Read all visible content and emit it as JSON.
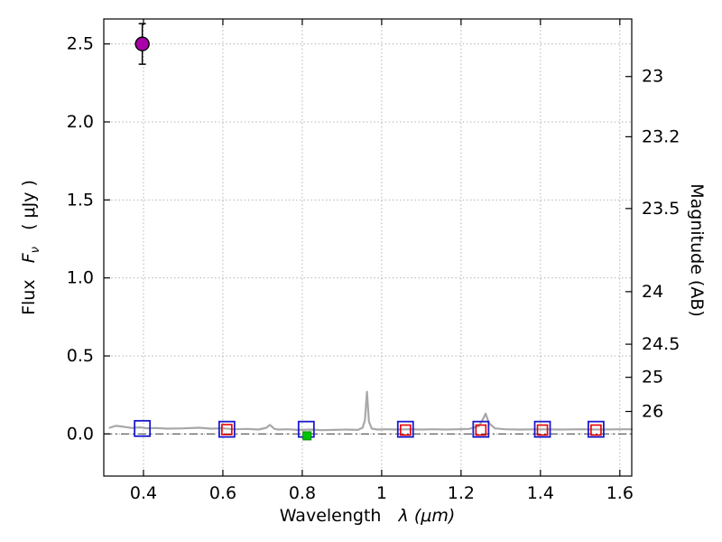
{
  "chart_data": {
    "type": "scatter",
    "title": "",
    "x_axis": {
      "label_parts": {
        "prefix": "Wavelength",
        "symbol": "λ",
        "unit": "(μm)"
      },
      "range": [
        0.3,
        1.63
      ],
      "tick_values": [
        0.4,
        0.6,
        0.8,
        1.0,
        1.2,
        1.4,
        1.6
      ],
      "tick_labels": [
        "0.4",
        "0.6",
        "0.8",
        "1",
        "1.2",
        "1.4",
        "1.6"
      ]
    },
    "y_axis_left": {
      "label_parts": {
        "prefix": "Flux",
        "symbol": "F",
        "sub": "ν",
        "unit": "( μJy )"
      },
      "range": [
        -0.27,
        2.66
      ],
      "tick_values": [
        0.0,
        0.5,
        1.0,
        1.5,
        2.0,
        2.5
      ],
      "tick_labels": [
        "0.0",
        "0.5",
        "1.0",
        "1.5",
        "2.0",
        "2.5"
      ]
    },
    "y_axis_right": {
      "label": "Magnitude (AB)",
      "tick_labels": [
        "23",
        "23.2",
        "23.5",
        "24",
        "24.5",
        "25",
        "26"
      ],
      "tick_flux_values": [
        2.291,
        1.905,
        1.445,
        0.912,
        0.575,
        0.363,
        0.144
      ]
    },
    "grid": {
      "show": true,
      "style": "dotted",
      "color": "#b3b3b3"
    },
    "zero_line": {
      "y": 0.0,
      "style": "dashdot",
      "color": "#404040"
    },
    "series": [
      {
        "name": "model-spectrum-line",
        "type": "line",
        "color": "#a8a8a8",
        "width": 2.2,
        "x": [
          0.315,
          0.33,
          0.35,
          0.37,
          0.39,
          0.41,
          0.43,
          0.46,
          0.5,
          0.54,
          0.57,
          0.6,
          0.63,
          0.66,
          0.69,
          0.71,
          0.718,
          0.724,
          0.73,
          0.74,
          0.76,
          0.79,
          0.82,
          0.85,
          0.88,
          0.91,
          0.94,
          0.952,
          0.958,
          0.963,
          0.968,
          0.975,
          0.99,
          1.01,
          1.04,
          1.07,
          1.1,
          1.13,
          1.16,
          1.19,
          1.22,
          1.245,
          1.255,
          1.262,
          1.27,
          1.285,
          1.31,
          1.35,
          1.4,
          1.45,
          1.5,
          1.55,
          1.6,
          1.63
        ],
        "y": [
          0.04,
          0.052,
          0.046,
          0.038,
          0.042,
          0.036,
          0.038,
          0.034,
          0.036,
          0.04,
          0.034,
          0.036,
          0.03,
          0.032,
          0.028,
          0.04,
          0.058,
          0.046,
          0.032,
          0.028,
          0.03,
          0.026,
          0.028,
          0.024,
          0.026,
          0.028,
          0.026,
          0.04,
          0.09,
          0.27,
          0.08,
          0.034,
          0.028,
          0.03,
          0.028,
          0.03,
          0.028,
          0.03,
          0.028,
          0.03,
          0.032,
          0.05,
          0.095,
          0.13,
          0.07,
          0.036,
          0.03,
          0.028,
          0.03,
          0.028,
          0.03,
          0.028,
          0.03,
          0.03
        ]
      },
      {
        "name": "observed-photometry-squares",
        "type": "scatter",
        "marker": "square-open",
        "color": "#1a1acd",
        "size": 17,
        "stroke_width": 1.8,
        "x": [
          0.397,
          0.61,
          0.81,
          1.06,
          1.25,
          1.405,
          1.54
        ],
        "y": [
          0.035,
          0.03,
          0.03,
          0.03,
          0.03,
          0.03,
          0.03
        ]
      },
      {
        "name": "model-photometry-squares",
        "type": "scatter",
        "marker": "square-open",
        "color": "#e60000",
        "size": 11,
        "stroke_width": 1.6,
        "x": [
          0.61,
          1.06,
          1.25,
          1.405,
          1.54
        ],
        "y": [
          0.028,
          0.025,
          0.025,
          0.025,
          0.025
        ]
      },
      {
        "name": "limit-photometry-square",
        "type": "scatter",
        "marker": "square-filled",
        "color": "#00c400",
        "edge": "#008800",
        "size": 9,
        "stroke_width": 1,
        "x": [
          0.812
        ],
        "y": [
          -0.012
        ]
      },
      {
        "name": "detection-point",
        "type": "scatter",
        "marker": "circle-filled",
        "color": "#aa00aa",
        "edge": "#000000",
        "size": 15,
        "x": [
          0.397
        ],
        "y": [
          2.5
        ],
        "yerr": [
          0.13
        ]
      }
    ]
  }
}
